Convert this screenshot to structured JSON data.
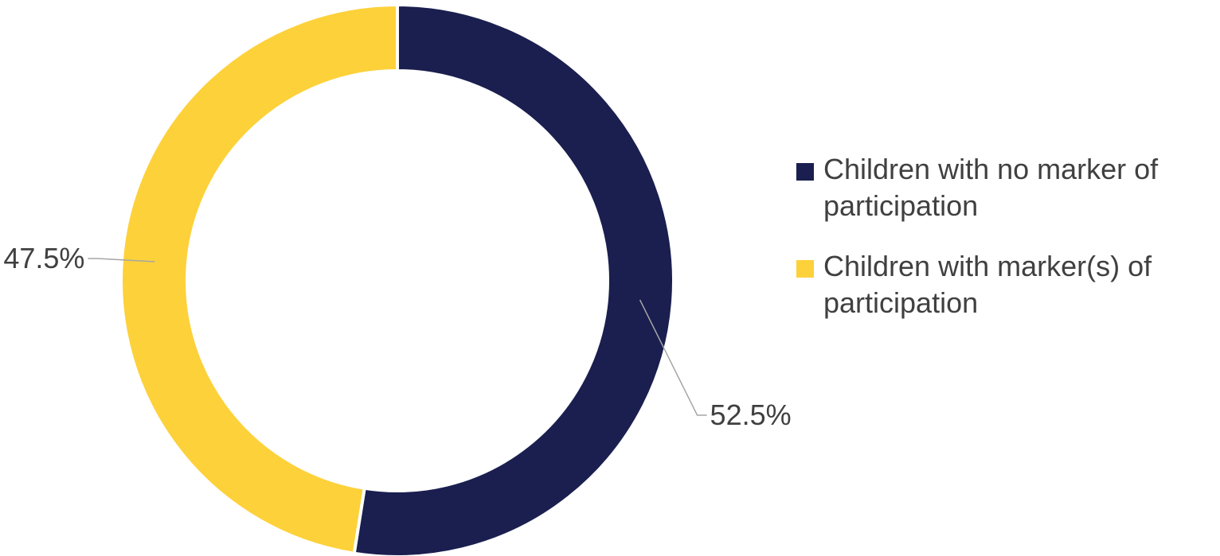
{
  "chart_data": {
    "type": "pie",
    "style": "donut",
    "title": "",
    "categories": [
      "Children with no marker of participation",
      "Children with marker(s) of participation"
    ],
    "values": [
      52.5,
      47.5
    ],
    "value_labels": [
      "52.5%",
      "47.5%"
    ],
    "colors": [
      "#1a1f4f",
      "#fdd13a"
    ],
    "legend": {
      "position": "right",
      "items": [
        {
          "label": "Children with no marker of participation",
          "color": "#1a1f4f"
        },
        {
          "label": "Children with marker(s) of participation",
          "color": "#fdd13a"
        }
      ]
    }
  }
}
